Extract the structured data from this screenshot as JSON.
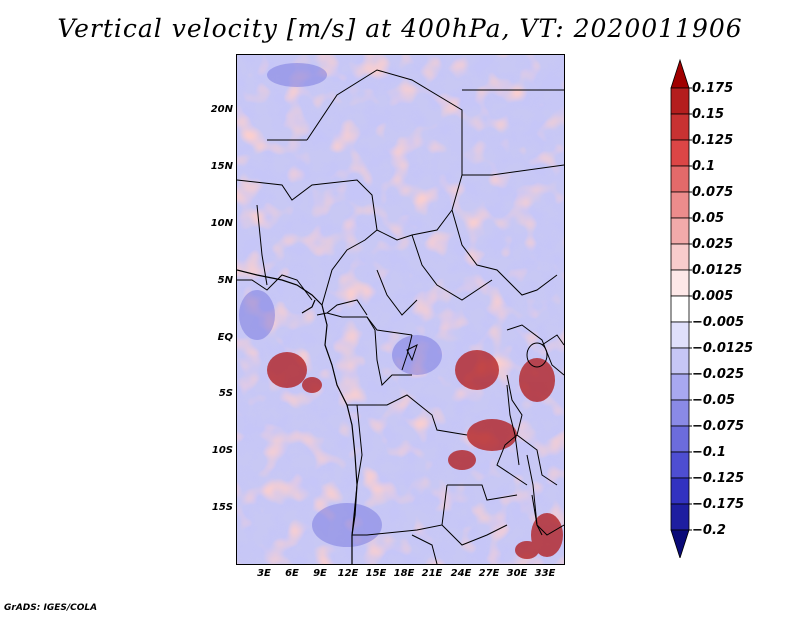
{
  "title": "Vertical velocity [m/s] at 400hPa, VT: 2020011906",
  "credit": "GrADS: IGES/COLA",
  "map": {
    "lon_range": [
      0,
      35
    ],
    "lat_range": [
      -20,
      25
    ],
    "lat_ticks": [
      {
        "value": 20,
        "label": "20N"
      },
      {
        "value": 15,
        "label": "15N"
      },
      {
        "value": 10,
        "label": "10N"
      },
      {
        "value": 5,
        "label": "5N"
      },
      {
        "value": 0,
        "label": "EQ"
      },
      {
        "value": -5,
        "label": "5S"
      },
      {
        "value": -10,
        "label": "10S"
      },
      {
        "value": -15,
        "label": "15S"
      }
    ],
    "lon_ticks": [
      {
        "value": 3,
        "label": "3E"
      },
      {
        "value": 6,
        "label": "6E"
      },
      {
        "value": 9,
        "label": "9E"
      },
      {
        "value": 12,
        "label": "12E"
      },
      {
        "value": 15,
        "label": "15E"
      },
      {
        "value": 18,
        "label": "18E"
      },
      {
        "value": 21,
        "label": "21E"
      },
      {
        "value": 24,
        "label": "24E"
      },
      {
        "value": 27,
        "label": "27E"
      },
      {
        "value": 30,
        "label": "30E"
      },
      {
        "value": 33,
        "label": "33E"
      }
    ]
  },
  "colorbar": {
    "labels": [
      "0.175",
      "0.15",
      "0.125",
      "0.1",
      "0.075",
      "0.05",
      "0.025",
      "0.0125",
      "0.005",
      "−0.005",
      "−0.0125",
      "−0.025",
      "−0.05",
      "−0.075",
      "−0.1",
      "−0.125",
      "−0.175",
      "−0.2"
    ],
    "colors": [
      "#a00000",
      "#b41e1e",
      "#c83232",
      "#dc4646",
      "#e36a6a",
      "#ec8c8c",
      "#f2aaaa",
      "#f8cccc",
      "#fde8e8",
      "#ffffff",
      "#e0e0fb",
      "#c6c6f5",
      "#a8a8f0",
      "#8a8ae6",
      "#6c6cdc",
      "#4e4ed2",
      "#3232c0",
      "#1e1ea0",
      "#0a0a78"
    ]
  }
}
